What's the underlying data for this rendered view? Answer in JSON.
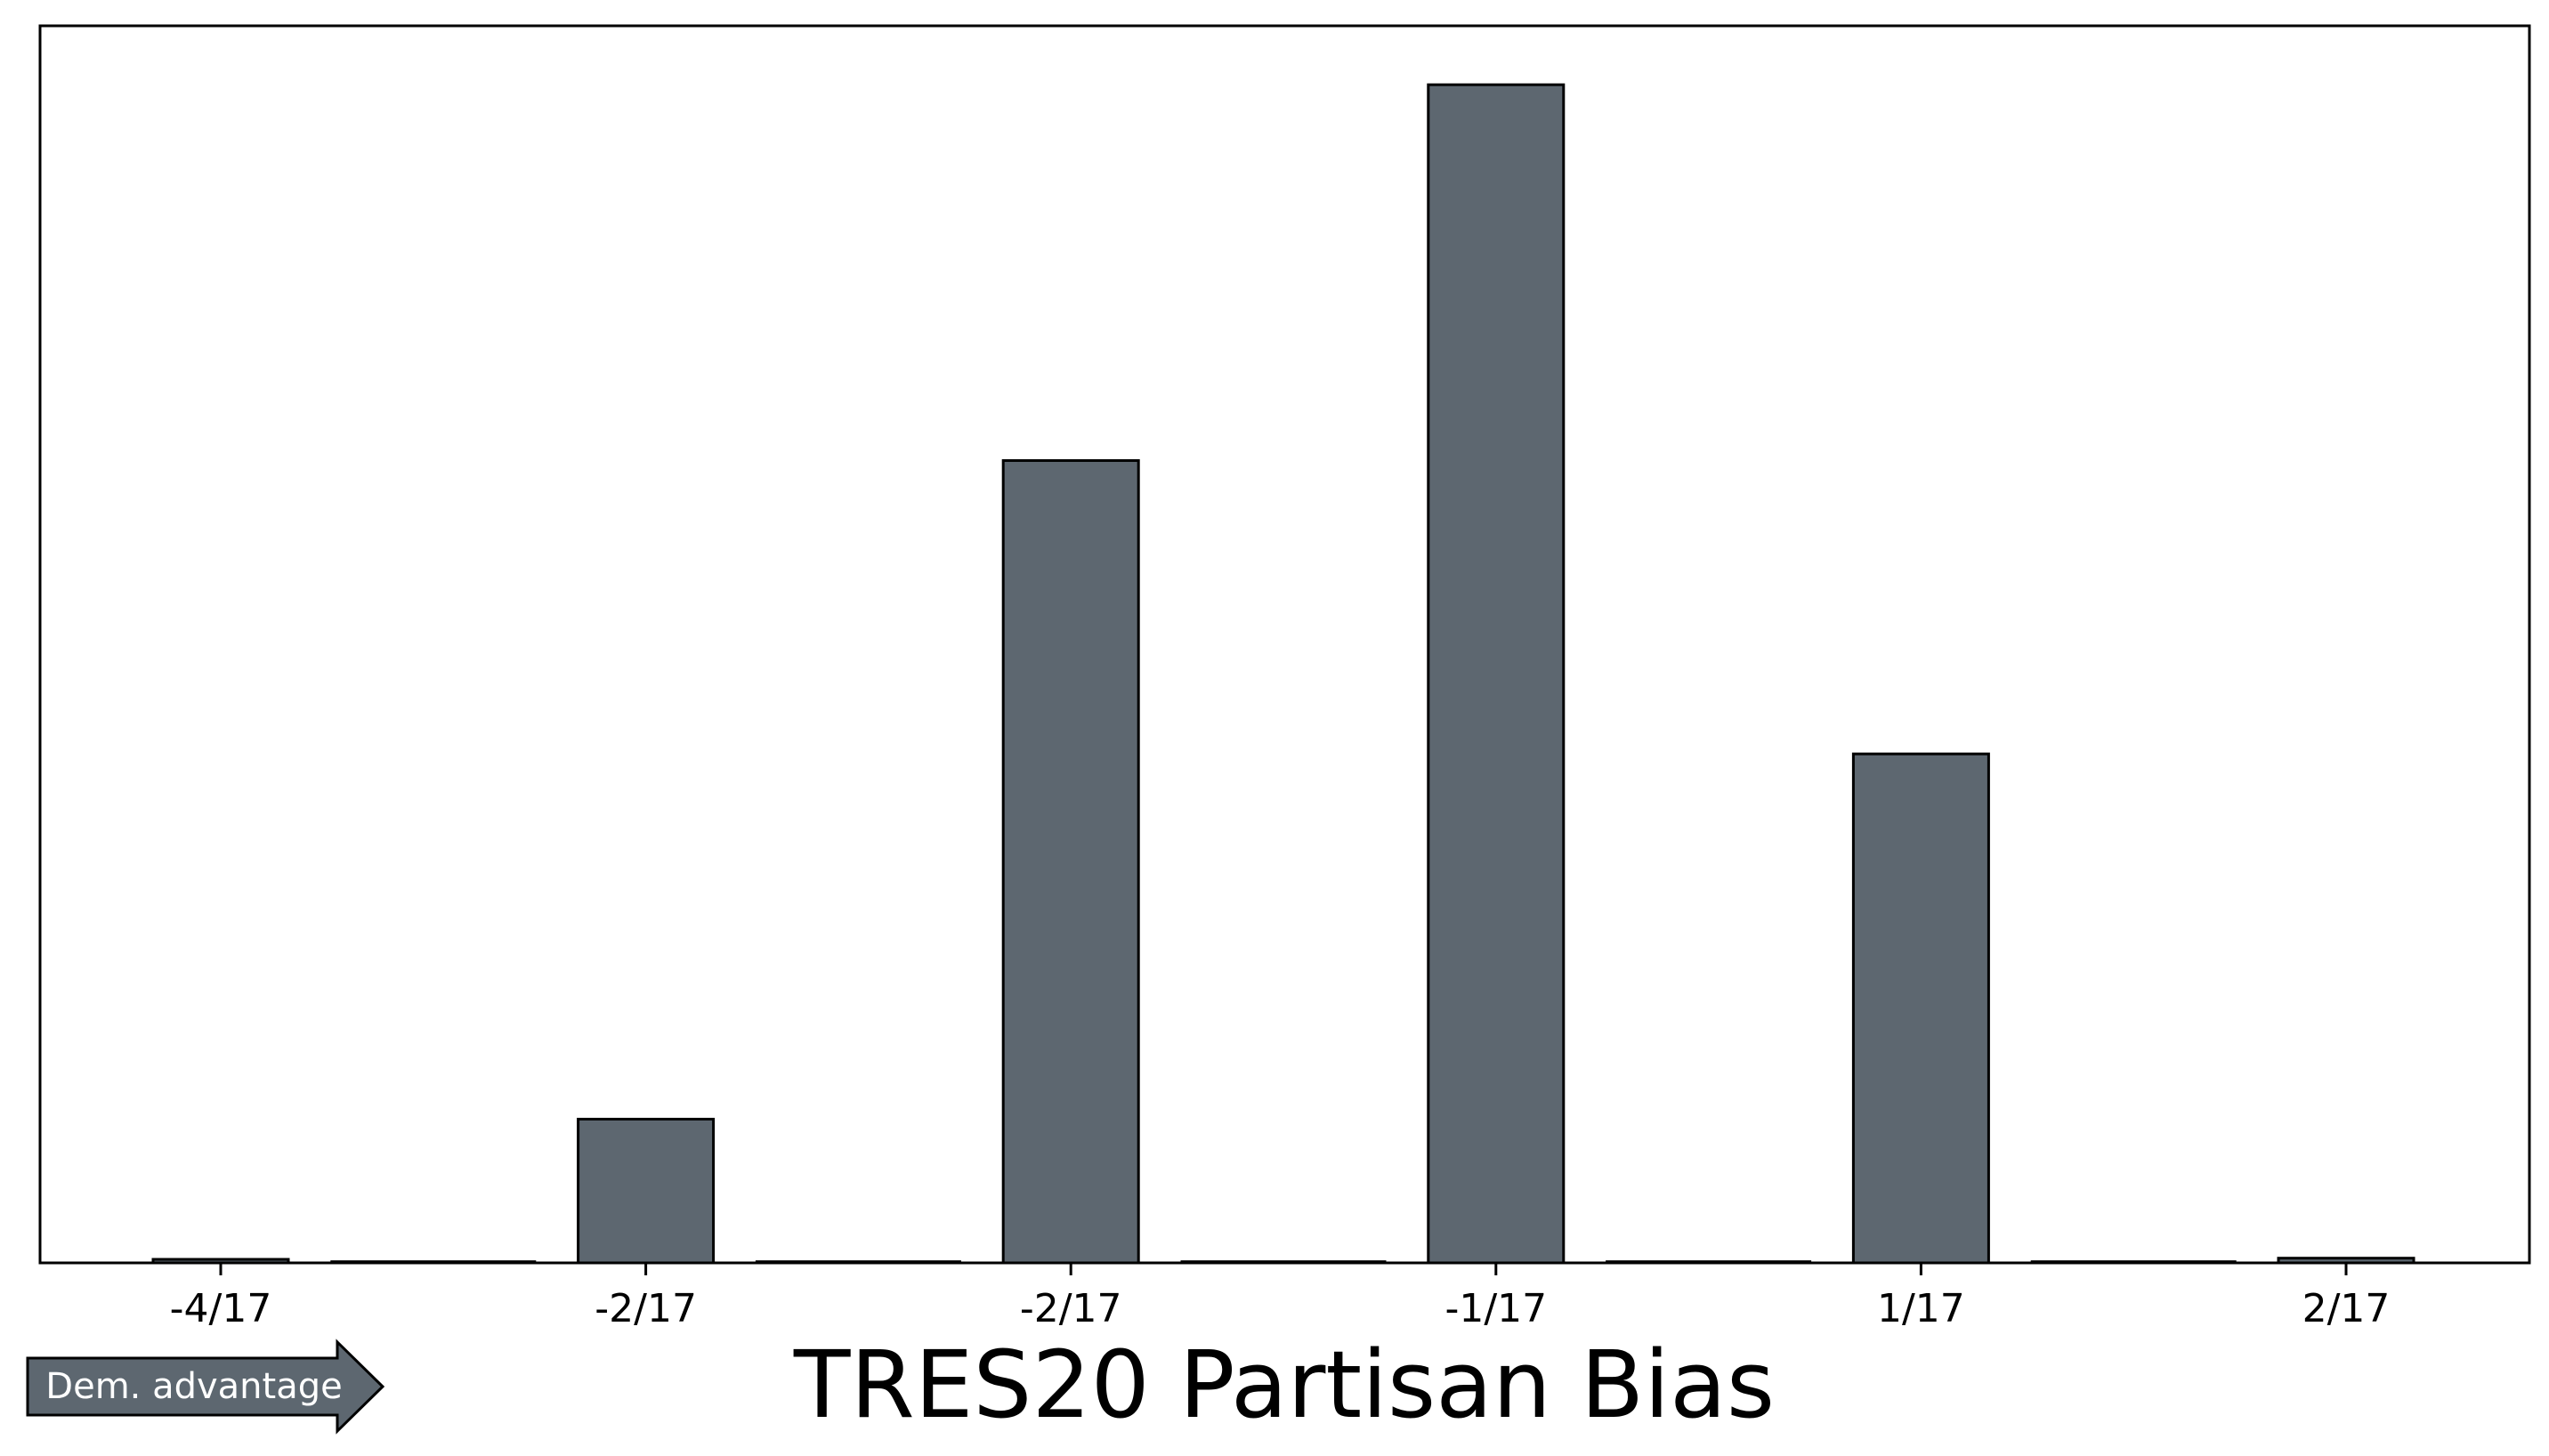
{
  "chart_data": {
    "type": "bar",
    "xlabel": "TRES20 Partisan Bias",
    "ylabel": "",
    "yticks": "hidden",
    "grid": false,
    "legend": "none",
    "bar_color": "#5d6770",
    "edge_color": "#000000",
    "x_ticks": [
      "-4/17",
      "-2/17",
      "-2/17",
      "-1/17",
      "1/17",
      "2/17"
    ],
    "ylim": [
      0,
      1.05
    ],
    "bars": [
      {
        "position": 0,
        "value": 0.003
      },
      {
        "position": 0.5,
        "value": 0.001
      },
      {
        "position": 1,
        "value": 0.122
      },
      {
        "position": 1.5,
        "value": 0.001
      },
      {
        "position": 2,
        "value": 0.681
      },
      {
        "position": 2.5,
        "value": 0.001
      },
      {
        "position": 3,
        "value": 1.0
      },
      {
        "position": 3.5,
        "value": 0.001
      },
      {
        "position": 4,
        "value": 0.432
      },
      {
        "position": 4.5,
        "value": 0.001
      },
      {
        "position": 5,
        "value": 0.004
      }
    ],
    "annotation": {
      "text": "Dem. advantage",
      "direction": "right",
      "color": "#5d6770"
    }
  }
}
